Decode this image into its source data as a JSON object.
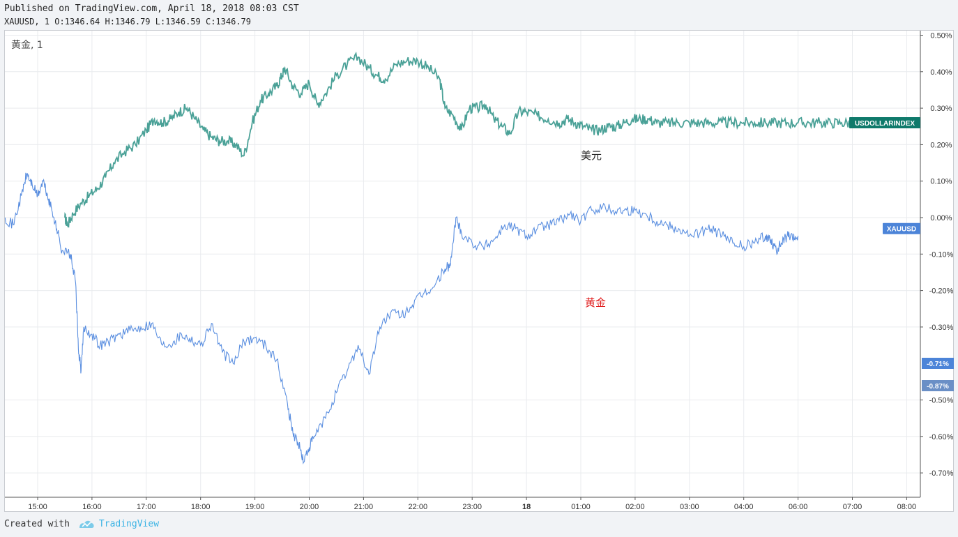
{
  "header": {
    "published": "Published on TradingView.com, April 18, 2018 08:03 CST",
    "ohlc": "XAUUSD, 1 O:1346.64 H:1346.79 L:1346.59 C:1346.79"
  },
  "footer": {
    "created_with": "Created with",
    "brand": "TradingView"
  },
  "chart_data": {
    "type": "line",
    "pane_label": "黄金, 1",
    "x_ticks": [
      "15:00",
      "16:00",
      "17:00",
      "18:00",
      "19:00",
      "20:00",
      "21:00",
      "22:00",
      "23:00",
      "18",
      "01:00",
      "02:00",
      "03:00",
      "04:00",
      "06:00",
      "07:00",
      "08:00"
    ],
    "y_ticks": [
      "0.50%",
      "0.40%",
      "0.30%",
      "0.20%",
      "0.10%",
      "0.00%",
      "-0.10%",
      "-0.20%",
      "-0.30%",
      "-0.50%",
      "-0.60%",
      "-0.70%"
    ],
    "ylim": [
      -0.76,
      0.52
    ],
    "grid": true,
    "series": [
      {
        "name": "USDOLLARINDEX",
        "label": "美元",
        "color": "#4aa197",
        "tag_color": "#0f7a6b",
        "x": [
          0.5,
          0.55,
          0.65,
          0.8,
          0.95,
          1.1,
          1.25,
          1.4,
          1.6,
          1.8,
          2.0,
          2.15,
          2.3,
          2.45,
          2.6,
          2.75,
          2.9,
          3.05,
          3.2,
          3.35,
          3.5,
          3.65,
          3.8,
          3.95,
          4.1,
          4.25,
          4.4,
          4.5,
          4.55,
          4.7,
          4.85,
          5.0,
          5.15,
          5.3,
          5.5,
          5.7,
          5.9,
          6.1,
          6.25,
          6.4,
          6.6,
          6.8,
          7.0,
          7.2,
          7.4,
          7.5,
          7.65,
          7.8,
          7.95,
          8.1,
          8.25,
          8.4,
          8.55,
          8.7,
          8.85,
          9.0,
          9.2,
          9.4,
          9.6,
          9.75,
          9.9,
          10.05,
          10.2,
          10.35,
          10.5,
          10.65,
          10.8,
          10.95,
          11.1,
          11.25,
          11.4,
          11.6,
          11.8,
          12.0,
          12.2,
          12.4,
          12.6,
          12.8,
          13.0,
          13.2,
          13.4,
          13.6,
          13.8,
          14.0,
          14.2,
          14.4,
          14.6,
          14.8,
          15.0
        ],
        "values": [
          0.0,
          -0.02,
          0.01,
          0.04,
          0.06,
          0.08,
          0.11,
          0.15,
          0.18,
          0.2,
          0.24,
          0.27,
          0.26,
          0.27,
          0.29,
          0.3,
          0.27,
          0.24,
          0.22,
          0.21,
          0.21,
          0.2,
          0.17,
          0.26,
          0.32,
          0.34,
          0.36,
          0.39,
          0.41,
          0.36,
          0.34,
          0.37,
          0.31,
          0.34,
          0.39,
          0.42,
          0.44,
          0.41,
          0.39,
          0.38,
          0.42,
          0.43,
          0.43,
          0.41,
          0.38,
          0.3,
          0.28,
          0.24,
          0.3,
          0.3,
          0.31,
          0.27,
          0.25,
          0.23,
          0.29,
          0.29,
          0.28,
          0.27,
          0.26,
          0.27,
          0.26,
          0.25,
          0.24,
          0.24,
          0.25,
          0.25,
          0.26,
          0.27,
          0.27,
          0.27,
          0.26,
          0.26,
          0.26,
          0.26,
          0.26,
          0.26,
          0.26,
          0.26,
          0.26,
          0.26,
          0.26,
          0.26,
          0.26,
          0.26,
          0.26,
          0.26,
          0.26,
          0.26,
          0.26
        ]
      },
      {
        "name": "XAUUSD",
        "label": "黄金",
        "color": "#5b8fe0",
        "tag_color": "#4c84d8",
        "x": [
          -0.6,
          -0.45,
          -0.3,
          -0.2,
          -0.1,
          0.0,
          0.1,
          0.2,
          0.3,
          0.35,
          0.45,
          0.6,
          0.7,
          0.75,
          0.8,
          0.85,
          1.0,
          1.15,
          1.3,
          1.5,
          1.7,
          1.9,
          2.1,
          2.3,
          2.5,
          2.65,
          2.8,
          3.0,
          3.2,
          3.4,
          3.6,
          3.8,
          4.0,
          4.2,
          4.4,
          4.6,
          4.7,
          4.8,
          4.9,
          5.0,
          5.1,
          5.3,
          5.5,
          5.7,
          5.9,
          6.1,
          6.3,
          6.5,
          6.7,
          6.9,
          7.1,
          7.3,
          7.5,
          7.6,
          7.7,
          7.8,
          8.0,
          8.2,
          8.4,
          8.6,
          8.8,
          9.0,
          9.2,
          9.4,
          9.6,
          9.8,
          10.0,
          10.2,
          10.4,
          10.6,
          10.8,
          11.0,
          11.2,
          11.4,
          11.6,
          11.8,
          12.0,
          12.2,
          12.4,
          12.6,
          12.8,
          13.0,
          13.2,
          13.4,
          13.5,
          13.6,
          13.7,
          13.8,
          13.9,
          14.0
        ],
        "values": [
          0.0,
          -0.02,
          0.06,
          0.12,
          0.09,
          0.06,
          0.1,
          0.05,
          0.0,
          -0.03,
          -0.09,
          -0.1,
          -0.18,
          -0.36,
          -0.42,
          -0.3,
          -0.32,
          -0.35,
          -0.34,
          -0.32,
          -0.31,
          -0.3,
          -0.29,
          -0.35,
          -0.34,
          -0.32,
          -0.33,
          -0.35,
          -0.29,
          -0.37,
          -0.4,
          -0.34,
          -0.33,
          -0.35,
          -0.39,
          -0.51,
          -0.59,
          -0.62,
          -0.67,
          -0.63,
          -0.6,
          -0.55,
          -0.48,
          -0.42,
          -0.35,
          -0.43,
          -0.3,
          -0.26,
          -0.27,
          -0.24,
          -0.21,
          -0.19,
          -0.14,
          -0.13,
          0.0,
          -0.04,
          -0.07,
          -0.08,
          -0.06,
          -0.02,
          -0.03,
          -0.05,
          -0.03,
          -0.02,
          -0.01,
          0.01,
          -0.01,
          0.02,
          0.03,
          0.02,
          0.02,
          0.02,
          0.01,
          -0.01,
          -0.02,
          -0.03,
          -0.05,
          -0.04,
          -0.03,
          -0.05,
          -0.07,
          -0.08,
          -0.07,
          -0.05,
          -0.06,
          -0.09,
          -0.07,
          -0.05,
          -0.06,
          -0.05
        ]
      }
    ],
    "price_labels": [
      {
        "text": "-0.71%",
        "value": -0.71,
        "color": "#4c84d8"
      },
      {
        "text": "-0.87%",
        "value": -0.87,
        "color": "#6a8fc6"
      }
    ]
  }
}
